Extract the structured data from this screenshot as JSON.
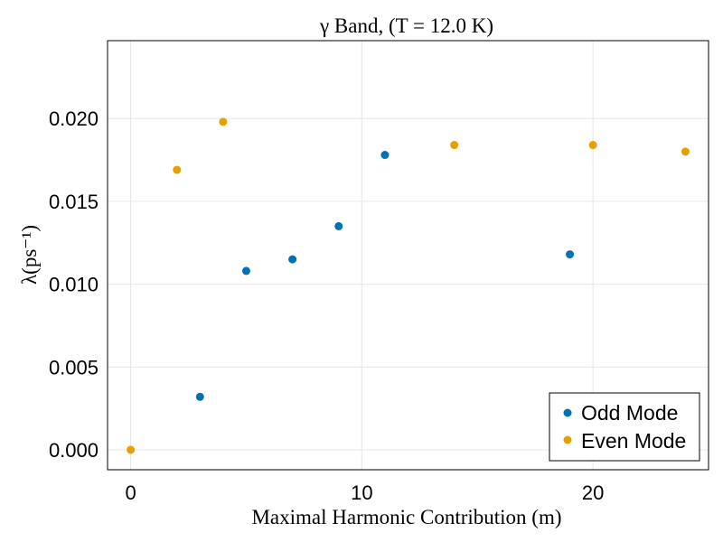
{
  "chart_data": {
    "type": "scatter",
    "title": "γ Band, (T = 12.0 K)",
    "xlabel": "Maximal Harmonic Contribution (m)",
    "ylabel": "λ(ps⁻¹)",
    "xlim": [
      -1,
      25
    ],
    "ylim": [
      -0.0012,
      0.0247
    ],
    "xticks": [
      0,
      10,
      20
    ],
    "xtick_labels": [
      "0",
      "10",
      "20"
    ],
    "yticks": [
      0.0,
      0.005,
      0.01,
      0.015,
      0.02
    ],
    "ytick_labels": [
      "0.000",
      "0.005",
      "0.010",
      "0.015",
      "0.020"
    ],
    "grid": true,
    "legend_position": "bottom-right",
    "series": [
      {
        "name": "Odd Mode",
        "color": "#0072b2",
        "x": [
          3,
          5,
          7,
          9,
          11,
          19
        ],
        "y": [
          0.0032,
          0.0108,
          0.0115,
          0.0135,
          0.0178,
          0.0118
        ]
      },
      {
        "name": "Even Mode",
        "color": "#e69f00",
        "x": [
          0,
          2,
          4,
          14,
          20,
          24
        ],
        "y": [
          0.0,
          0.0169,
          0.0198,
          0.0184,
          0.0184,
          0.018
        ]
      }
    ]
  }
}
